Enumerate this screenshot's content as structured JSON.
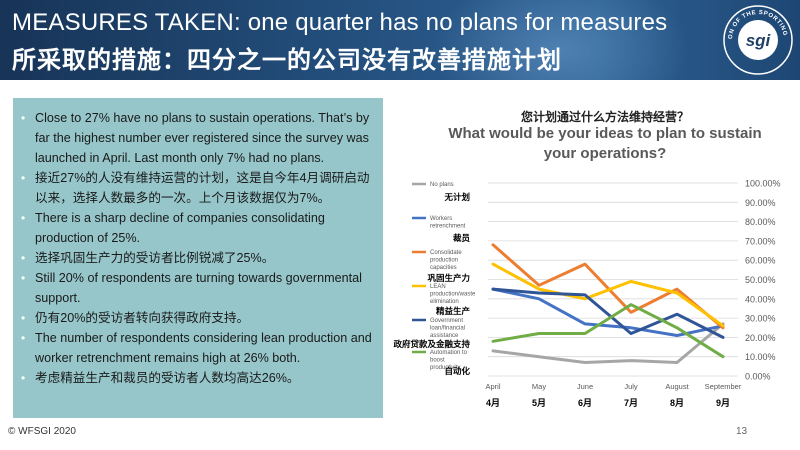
{
  "header": {
    "title_en": "MEASURES TAKEN: one quarter has no plans for measures",
    "title_zh": "所采取的措施：四分之一的公司没有改善措施计划",
    "logo": {
      "icon": "sgi-logo-icon",
      "text": "sgi",
      "ring_text": "WORLD FEDERATION OF THE SPORTING GOODS INDUSTRY"
    }
  },
  "bullets": [
    "Close to 27% have no plans to sustain operations. That’s by far the highest number ever registered since the survey was launched in April. Last month only 7% had no plans.",
    "接近27%的人没有维持运营的计划，这是自今年4月调研启动以来，选择人数最多的一次。上个月该数据仅为7%。",
    "There is a sharp decline of companies consolidating production of 25%.",
    "选择巩固生产力的受访者比例锐减了25%。",
    "Still 20% of respondents are turning towards governmental support.",
    "仍有20%的受访者转向获得政府支持。",
    "The number of respondents considering lean production and worker retrenchment remains high at 26% both.",
    "考虑精益生产和裁员的受访者人数均高达26%。"
  ],
  "chart_data": {
    "type": "line",
    "title_zh": "您计划通过什么方法维持经营？",
    "title": "What would be your ideas to plan to sustain your operations?",
    "x": [
      "April",
      "May",
      "June",
      "July",
      "August",
      "September"
    ],
    "x_zh": [
      "4月",
      "5月",
      "6月",
      "7月",
      "8月",
      "9月"
    ],
    "ylim": [
      0,
      100
    ],
    "y_ticks": [
      "0.00%",
      "10.00%",
      "20.00%",
      "30.00%",
      "40.00%",
      "50.00%",
      "60.00%",
      "70.00%",
      "80.00%",
      "90.00%",
      "100.00%"
    ],
    "grid": true,
    "legend_position": "left",
    "series": [
      {
        "name": "No plans",
        "name_zh": "无计划",
        "color": "#a6a6a6",
        "values": [
          13,
          10,
          7,
          8,
          7,
          27
        ]
      },
      {
        "name": "Workers retrenchment",
        "name_zh": "裁员",
        "color": "#4472c4",
        "values": [
          45,
          40,
          27,
          25,
          21,
          26
        ]
      },
      {
        "name": "Consolidate production capacities",
        "name_zh": "巩固生产力",
        "color": "#ed7d31",
        "values": [
          68,
          47,
          58,
          33,
          45,
          25
        ]
      },
      {
        "name": "LEAN production/waste elimination",
        "name_zh": "精益生产",
        "color": "#ffc000",
        "values": [
          58,
          45,
          40,
          49,
          43,
          26
        ]
      },
      {
        "name": "Government loan/financial assistance",
        "name_zh": "政府贷款及金融支持",
        "color": "#2f5597",
        "values": [
          45,
          43,
          42,
          22,
          32,
          20
        ]
      },
      {
        "name": "Automation to boost productivity",
        "name_zh": "自动化",
        "color": "#70ad47",
        "values": [
          18,
          22,
          22,
          37,
          25,
          10
        ]
      }
    ]
  },
  "footer": {
    "copyright": "© WFSGI 2020",
    "page": "13"
  }
}
